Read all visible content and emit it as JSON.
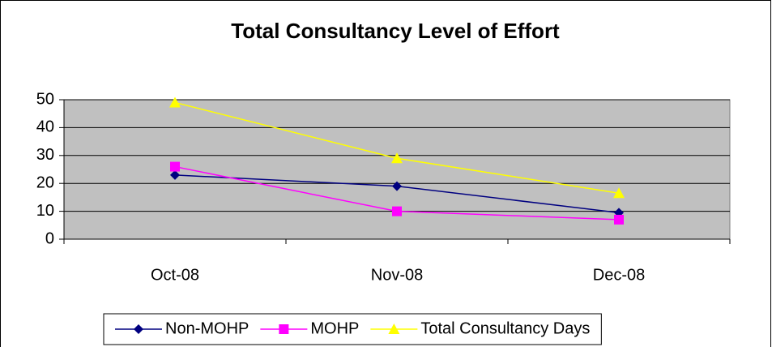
{
  "chart_data": {
    "type": "line",
    "title": "Total Consultancy Level of Effort",
    "categories": [
      "Oct-08",
      "Nov-08",
      "Dec-08"
    ],
    "series": [
      {
        "name": "Non-MOHP",
        "color": "#000080",
        "marker": "diamond",
        "values": [
          23,
          19,
          9.5
        ]
      },
      {
        "name": "MOHP",
        "color": "#ff00ff",
        "marker": "square",
        "values": [
          26,
          10,
          7
        ]
      },
      {
        "name": "Total Consultancy Days",
        "color": "#ffff00",
        "marker": "triangle",
        "values": [
          49,
          29,
          16.5
        ]
      }
    ],
    "ylim": [
      0,
      50
    ],
    "yticks": [
      0,
      10,
      20,
      30,
      40,
      50
    ],
    "grid": true,
    "legend": "bottom"
  }
}
